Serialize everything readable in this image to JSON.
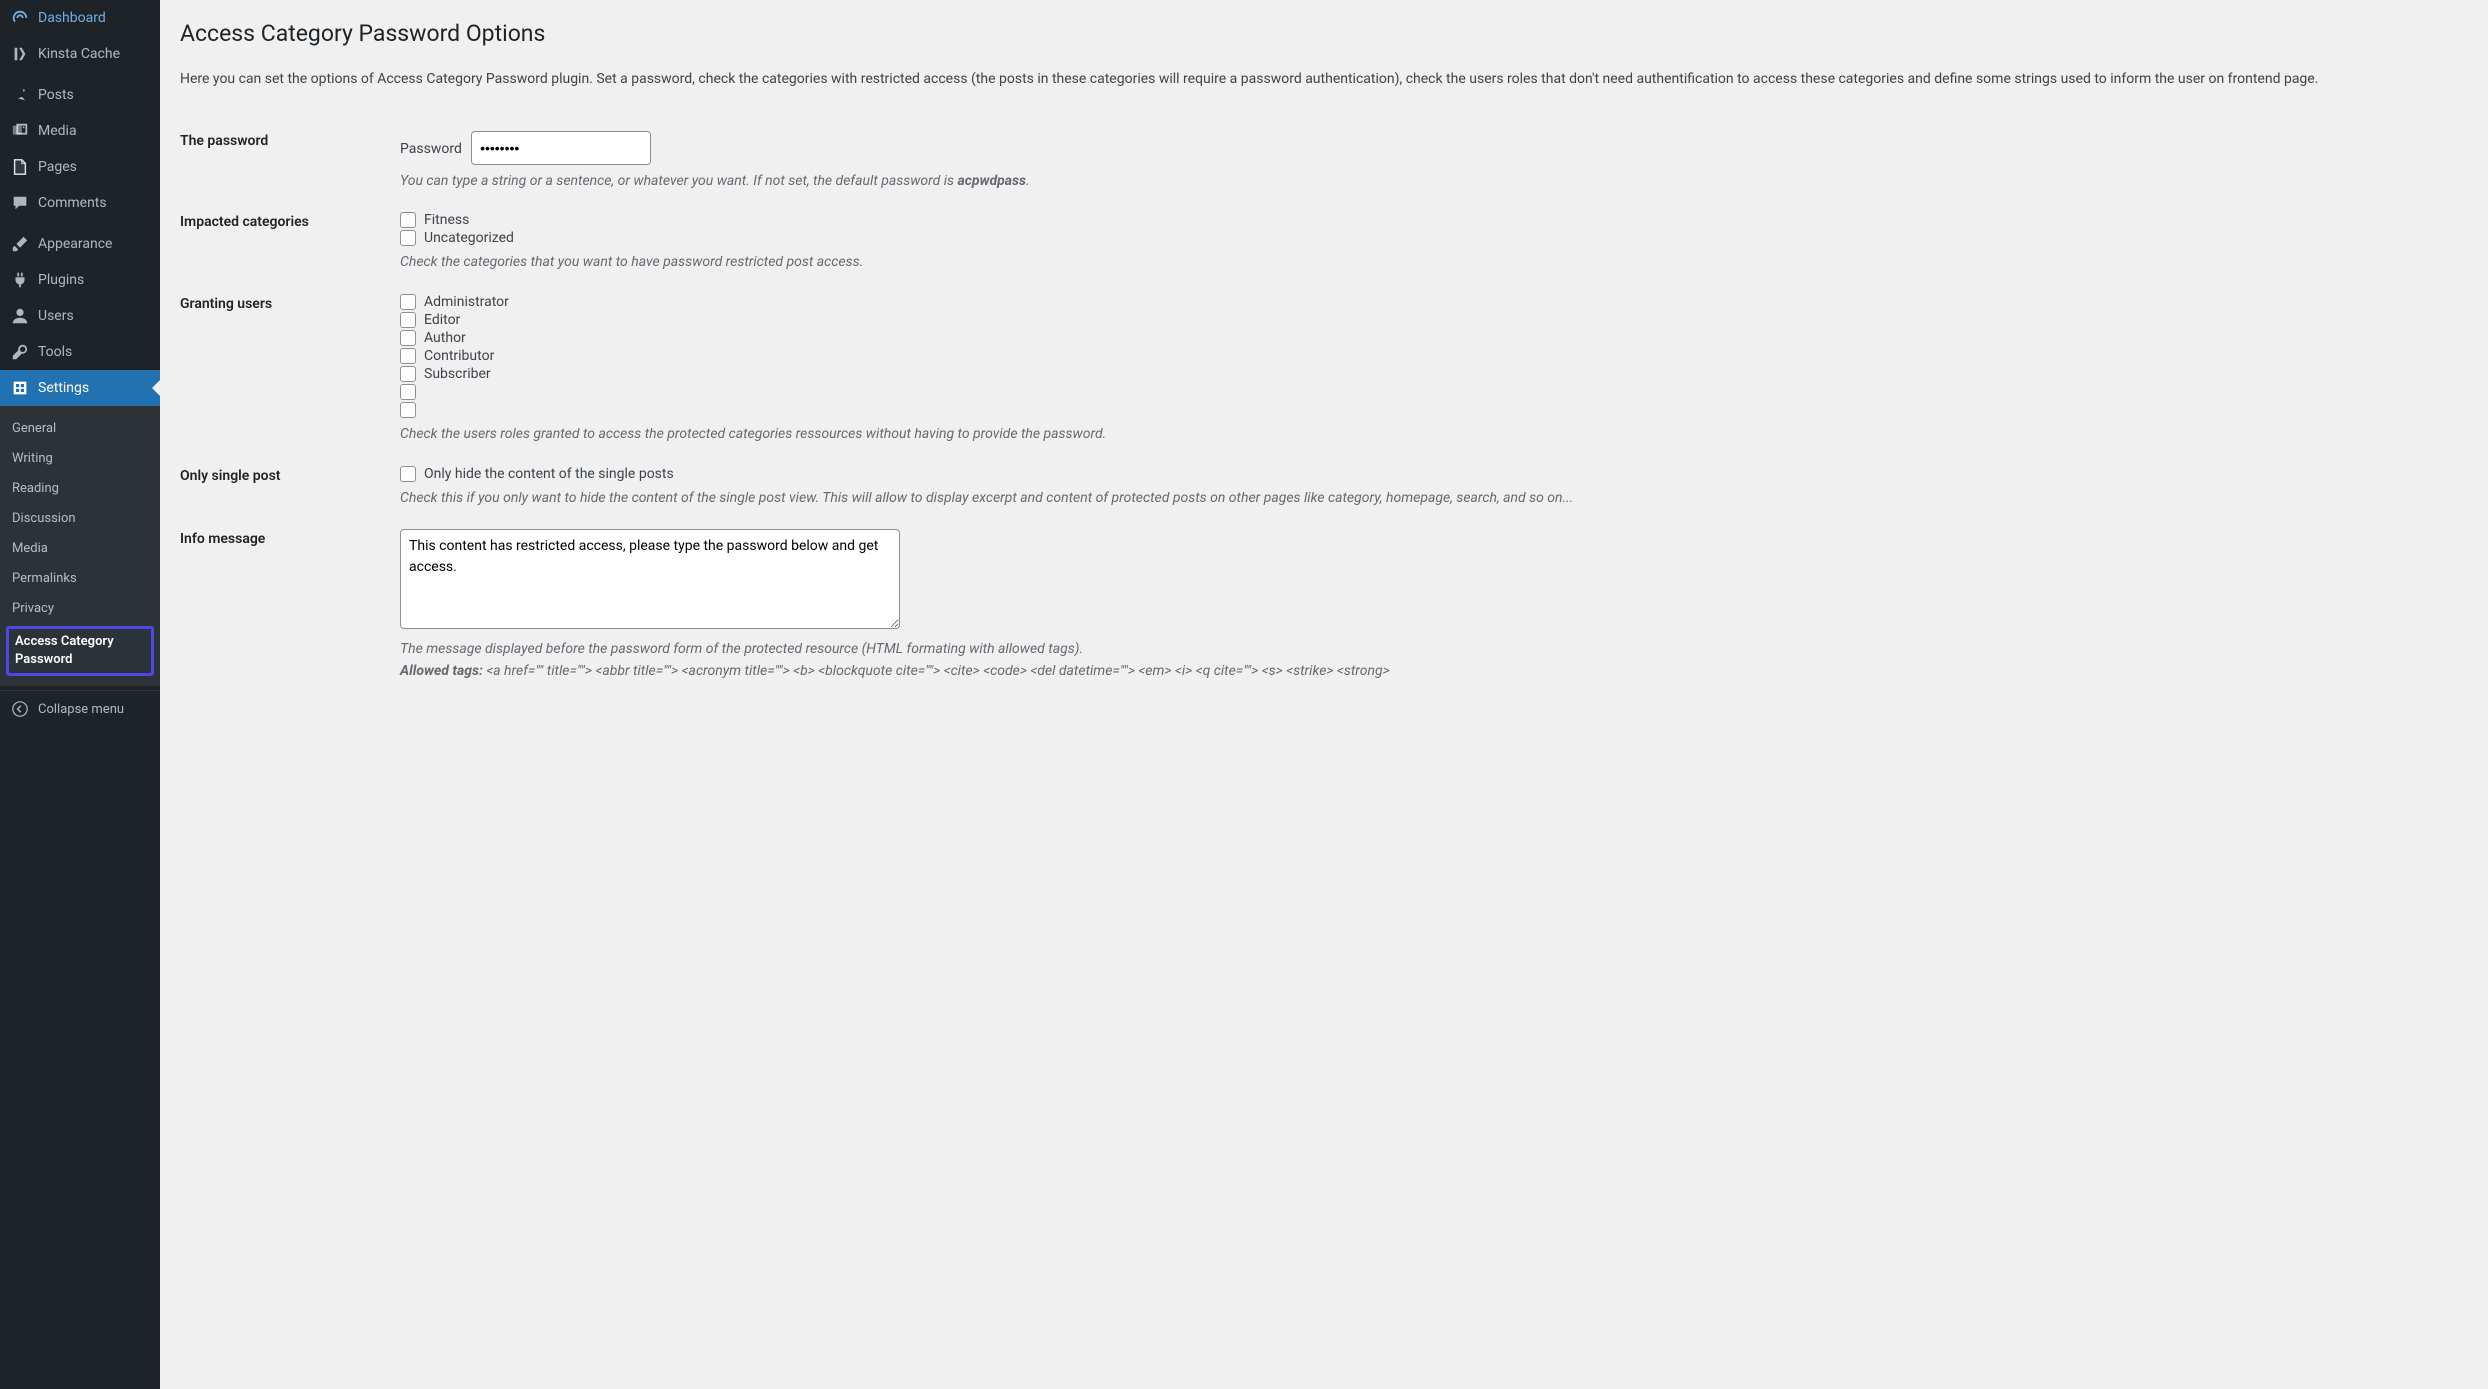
{
  "sidebar": {
    "items": [
      {
        "label": "Dashboard",
        "icon": "dashboard"
      },
      {
        "label": "Kinsta Cache",
        "icon": "kinsta"
      }
    ],
    "items2": [
      {
        "label": "Posts",
        "icon": "pin"
      },
      {
        "label": "Media",
        "icon": "media"
      },
      {
        "label": "Pages",
        "icon": "page"
      },
      {
        "label": "Comments",
        "icon": "comment"
      }
    ],
    "items3": [
      {
        "label": "Appearance",
        "icon": "brush"
      },
      {
        "label": "Plugins",
        "icon": "plug"
      },
      {
        "label": "Users",
        "icon": "user"
      },
      {
        "label": "Tools",
        "icon": "wrench"
      },
      {
        "label": "Settings",
        "icon": "sliders",
        "current": true
      }
    ],
    "submenu": [
      {
        "label": "General"
      },
      {
        "label": "Writing"
      },
      {
        "label": "Reading"
      },
      {
        "label": "Discussion"
      },
      {
        "label": "Media"
      },
      {
        "label": "Permalinks"
      },
      {
        "label": "Privacy"
      },
      {
        "label": "Access Category Password",
        "active": true,
        "highlighted": true
      }
    ],
    "collapse": "Collapse menu"
  },
  "page": {
    "title": "Access Category Password Options",
    "intro": "Here you can set the options of Access Category Password plugin. Set a password, check the categories with restricted access (the posts in these categories will require a password authentication), check the users roles that don't need authentification to access these categories and define some strings used to inform the user on frontend page."
  },
  "form": {
    "password": {
      "label": "The password",
      "field_label": "Password",
      "value": "••••••••",
      "description_prefix": "You can type a string or a sentence, or whatever you want. If not set, the default password is ",
      "description_strong": "acpwdpass",
      "description_suffix": "."
    },
    "categories": {
      "label": "Impacted categories",
      "options": [
        "Fitness",
        "Uncategorized"
      ],
      "description": "Check the categories that you want to have password restricted post access."
    },
    "users": {
      "label": "Granting users",
      "options": [
        "Administrator",
        "Editor",
        "Author",
        "Contributor",
        "Subscriber",
        "",
        ""
      ],
      "description": "Check the users roles granted to access the protected categories ressources without having to provide the password."
    },
    "single": {
      "label": "Only single post",
      "option": "Only hide the content of the single posts",
      "description": "Check this if you only want to hide the content of the single post view. This will allow to display excerpt and content of protected posts on other pages like category, homepage, search, and so on..."
    },
    "info": {
      "label": "Info message",
      "value": "This content has restricted access, please type the password below and get access.",
      "description": "The message displayed before the password form of the protected resource (HTML formating with allowed tags).",
      "allowed_lead": "Allowed tags: ",
      "allowed_tags": "<a href=\"\" title=\"\"> <abbr title=\"\"> <acronym title=\"\"> <b> <blockquote cite=\"\"> <cite> <code> <del datetime=\"\"> <em> <i> <q cite=\"\"> <s> <strike> <strong>"
    }
  },
  "colors": {
    "sidebar_bg": "#1d2327",
    "submenu_bg": "#2c3338",
    "accent": "#2271b1",
    "highlight_border": "#4f46e5",
    "body_bg": "#f0f0f1",
    "text": "#3c434a",
    "muted": "#646970"
  }
}
